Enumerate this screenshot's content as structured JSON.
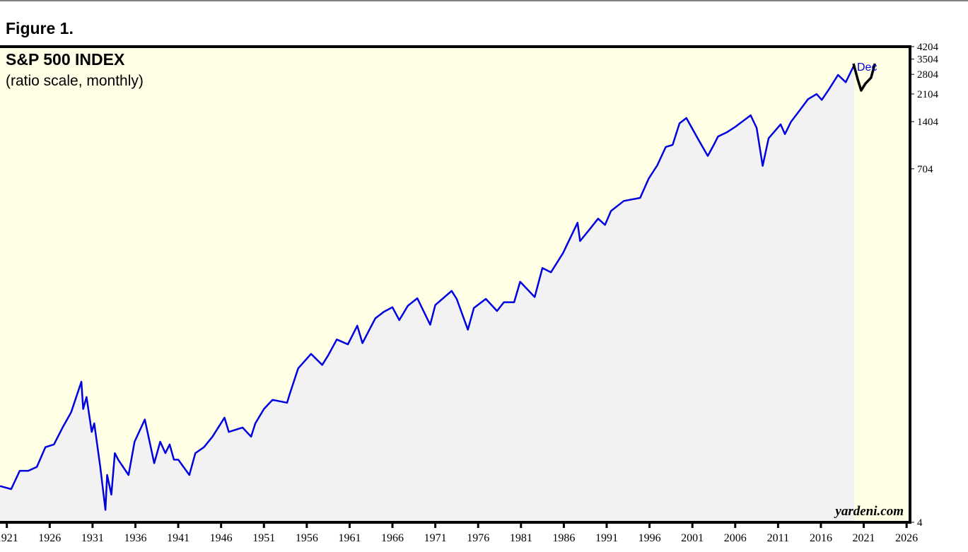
{
  "page_title": "Figure 1.",
  "chart_data": {
    "type": "line",
    "title": "S&P 500 INDEX",
    "subtitle": "(ratio scale, monthly)",
    "annotation": "Dec",
    "watermark": "yardeni.com",
    "log_scale": true,
    "xlim": [
      1920.2,
      2026.4
    ],
    "xticks": [
      1921,
      1926,
      1931,
      1936,
      1941,
      1946,
      1951,
      1956,
      1961,
      1966,
      1971,
      1976,
      1981,
      1986,
      1991,
      1996,
      2001,
      2006,
      2011,
      2016,
      2021,
      2026
    ],
    "ylim": [
      4,
      4204
    ],
    "yticks": [
      4,
      704,
      1404,
      2104,
      2804,
      3504,
      4204
    ],
    "series": [
      {
        "color": "#0000e0",
        "x": [
          1920.2,
          1921.5,
          1922.5,
          1923.5,
          1924.5,
          1925.5,
          1926.5,
          1927.5,
          1928.5,
          1929.7,
          1929.9,
          1930.3,
          1930.9,
          1931.2,
          1931.9,
          1932.5,
          1932.7,
          1933.2,
          1933.6,
          1934.0,
          1935.2,
          1935.9,
          1937.1,
          1938.2,
          1938.9,
          1939.5,
          1940.0,
          1940.5,
          1941.0,
          1942.3,
          1943.0,
          1944.0,
          1945.0,
          1946.4,
          1946.9,
          1948.5,
          1949.5,
          1950.0,
          1951.0,
          1952.0,
          1953.7,
          1954.0,
          1955.0,
          1956.5,
          1957.8,
          1958.5,
          1959.5,
          1960.8,
          1961.9,
          1962.5,
          1963.5,
          1964.0,
          1965.0,
          1966.0,
          1966.8,
          1967.8,
          1968.9,
          1970.4,
          1971.0,
          1972.9,
          1973.5,
          1974.8,
          1975.5,
          1976.9,
          1978.2,
          1979.0,
          1980.2,
          1980.9,
          1982.6,
          1983.5,
          1984.5,
          1985.9,
          1987.6,
          1987.9,
          1989.0,
          1990.0,
          1990.8,
          1991.5,
          1993.0,
          1994.9,
          1995.9,
          1996.9,
          1997.9,
          1998.7,
          1999.5,
          2000.3,
          2001.7,
          2002.8,
          2003.5,
          2004.0,
          2005.0,
          2006.0,
          2007.8,
          2008.5,
          2009.2,
          2009.9,
          2011.3,
          2011.8,
          2012.5,
          2013.5,
          2014.5,
          2015.5,
          2016.1,
          2017.0,
          2018.0,
          2018.9,
          2019.9
        ],
        "values": [
          6.8,
          6.5,
          8.5,
          8.5,
          9,
          12,
          12.5,
          16,
          20,
          31.3,
          21,
          25,
          15,
          17,
          9,
          4.8,
          8,
          6,
          11,
          10,
          8,
          13,
          18,
          9.5,
          13,
          11,
          12.5,
          10,
          10,
          8,
          11,
          12,
          14,
          18.5,
          15,
          16,
          14,
          17,
          21,
          24,
          23,
          26,
          38,
          47,
          40,
          46,
          58,
          54,
          71,
          55,
          70,
          79,
          87,
          93,
          77,
          95,
          106,
          72,
          96,
          118,
          105,
          67,
          92,
          105,
          88,
          100,
          100,
          135,
          108,
          165,
          155,
          205,
          320,
          245,
          290,
          340,
          310,
          380,
          440,
          460,
          610,
          740,
          970,
          1000,
          1370,
          1480,
          1080,
          850,
          1000,
          1130,
          1200,
          1300,
          1540,
          1280,
          735,
          1100,
          1350,
          1170,
          1400,
          1650,
          1950,
          2100,
          1930,
          2280,
          2780,
          2500,
          3230
        ]
      },
      {
        "color": "#000000",
        "x": [
          2019.8,
          2020.3,
          2020.7,
          2021.2,
          2021.85,
          2022.3
        ],
        "values": [
          3280,
          2600,
          2215,
          2450,
          2670,
          3280
        ]
      }
    ]
  }
}
